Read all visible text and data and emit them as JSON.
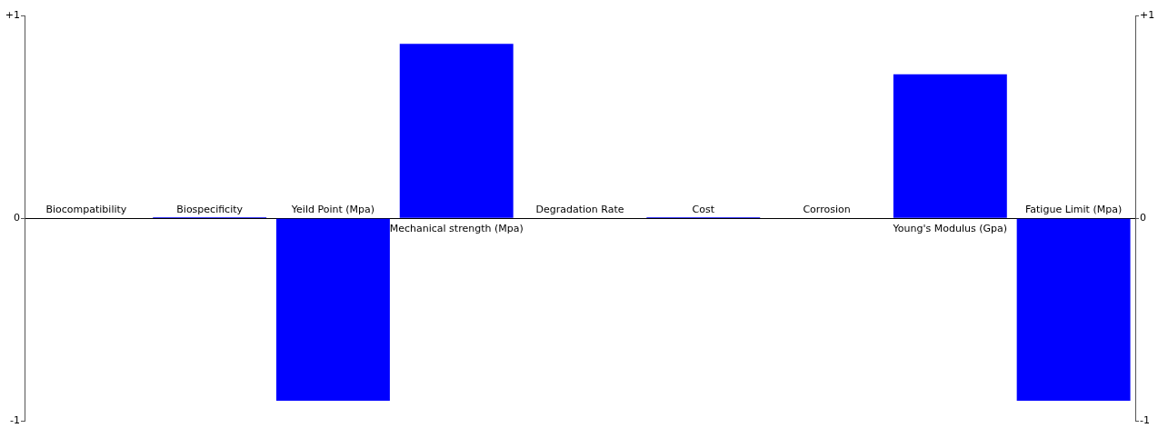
{
  "chart_data": {
    "type": "bar",
    "categories": [
      "Biocompatibility",
      "Biospecificity",
      "Yeild Point (Mpa)",
      "Mechanical strength (Mpa)",
      "Degradation Rate",
      "Cost",
      "Corrosion",
      "Young's Modulus (Gpa)",
      "Fatigue Limit (Mpa)"
    ],
    "values": [
      0,
      0.005,
      -0.9,
      0.86,
      0,
      0.005,
      0,
      0.71,
      -0.9
    ],
    "color": "#0000ff",
    "ylim": [
      -1,
      1
    ],
    "yticks": [
      {
        "value": 1,
        "label": "+1"
      },
      0,
      -1
    ],
    "y2lim": [
      -1,
      1
    ],
    "y2ticks": [
      {
        "value": 1,
        "label": "+1"
      },
      0,
      -1
    ],
    "grid": false,
    "legend": false
  }
}
